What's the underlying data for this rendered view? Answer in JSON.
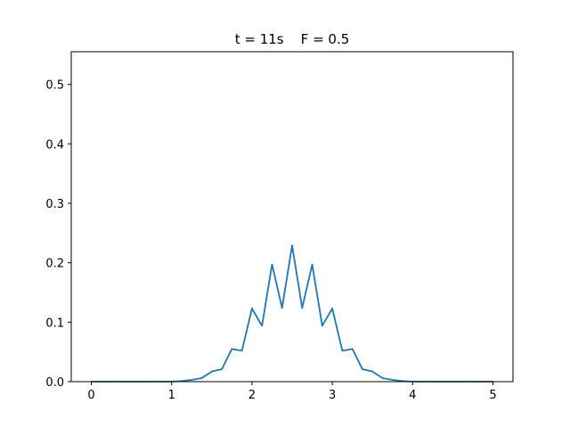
{
  "chart_data": {
    "type": "line",
    "title": "t = 11s    F = 0.5",
    "xlabel": "",
    "ylabel": "",
    "xlim": [
      -0.25,
      5.25
    ],
    "ylim": [
      0,
      0.555
    ],
    "xticks": [
      0,
      1,
      2,
      3,
      4,
      5
    ],
    "yticks": [
      0.0,
      0.1,
      0.2,
      0.3,
      0.4,
      0.5
    ],
    "xtick_labels": [
      "0",
      "1",
      "2",
      "3",
      "4",
      "5"
    ],
    "ytick_labels": [
      "0.0",
      "0.1",
      "0.2",
      "0.3",
      "0.4",
      "0.5"
    ],
    "grid": false,
    "legend": "none",
    "line_color": "#1f77b4",
    "series": [
      {
        "x": [
          0.0,
          0.125,
          0.25,
          0.375,
          0.5,
          0.625,
          0.75,
          0.875,
          1.0,
          1.125,
          1.25,
          1.375,
          1.5,
          1.625,
          1.75,
          1.875,
          2.0,
          2.125,
          2.25,
          2.375,
          2.5,
          2.625,
          2.75,
          2.875,
          3.0,
          3.125,
          3.25,
          3.375,
          3.5,
          3.625,
          3.75,
          3.875,
          4.0,
          4.125,
          4.25,
          4.375,
          4.5,
          4.625,
          4.75,
          4.875,
          5.0
        ],
        "values": [
          0.0,
          0.0,
          0.0,
          0.0,
          0.0,
          0.0,
          0.0,
          0.0,
          0.0,
          0.001,
          0.003,
          0.006,
          0.017,
          0.021,
          0.055,
          0.052,
          0.123,
          0.094,
          0.197,
          0.124,
          0.229,
          0.124,
          0.197,
          0.094,
          0.123,
          0.052,
          0.055,
          0.021,
          0.017,
          0.006,
          0.003,
          0.001,
          0.0,
          0.0,
          0.0,
          0.0,
          0.0,
          0.0,
          0.0,
          0.0,
          0.0
        ]
      }
    ]
  }
}
